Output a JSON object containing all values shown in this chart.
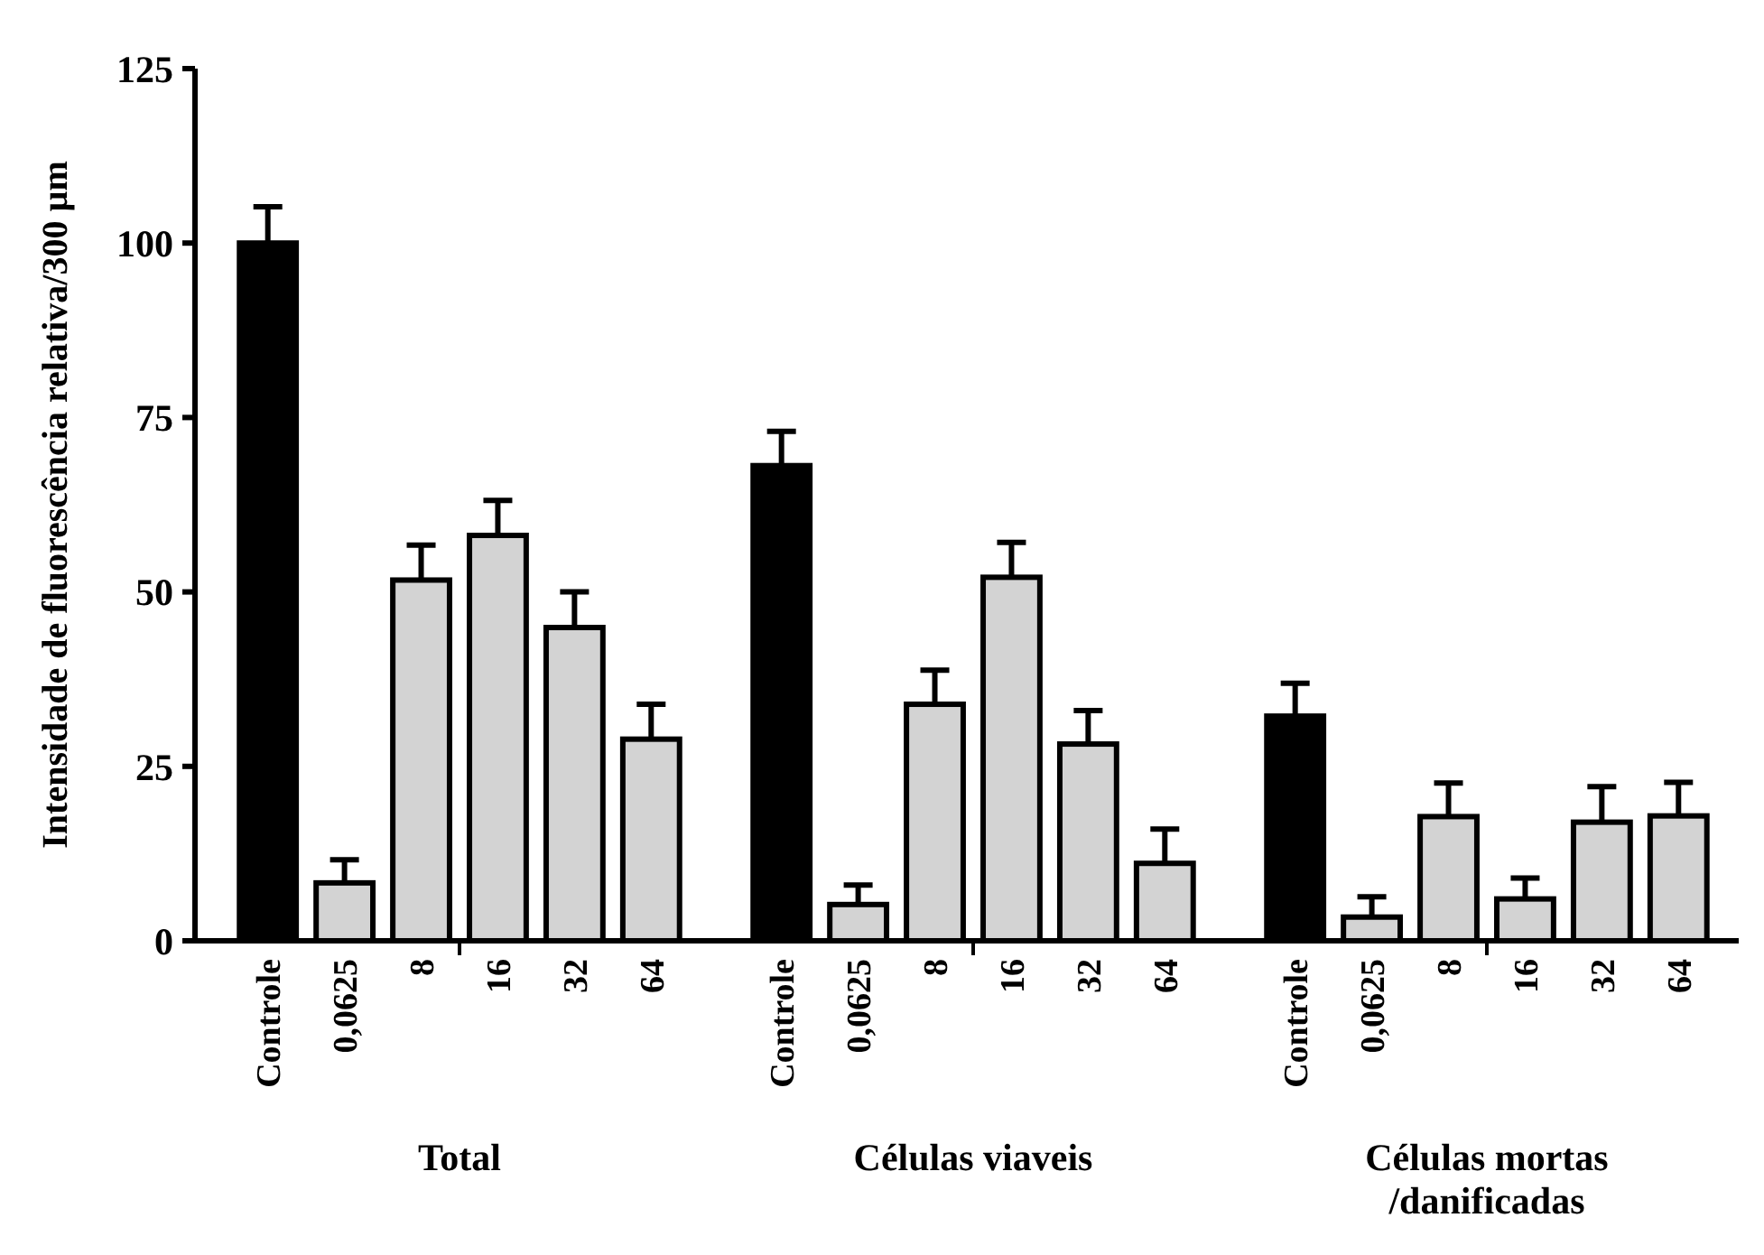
{
  "chart_data": {
    "type": "bar",
    "ylabel": "Intensidade de fluorescência relativa/300 µm",
    "categories": [
      "Controle",
      "0,0625",
      "8",
      "16",
      "32",
      "64",
      "Controle",
      "0,0625",
      "8",
      "16",
      "32",
      "64",
      "Controle",
      "0,0625",
      "8",
      "16",
      "32",
      "64"
    ],
    "values": [
      100,
      8.3,
      51.7,
      58.1,
      44.9,
      28.9,
      68.1,
      5.2,
      33.9,
      52.1,
      28.2,
      11.1,
      32.2,
      3.4,
      17.8,
      6.0,
      17.0,
      17.9
    ],
    "errors": [
      5.2,
      3.3,
      5,
      5,
      5.1,
      5,
      4.9,
      2.8,
      4.9,
      5,
      4.8,
      4.9,
      4.7,
      2.9,
      4.8,
      3,
      5.1,
      4.8
    ],
    "colors": [
      "#000000",
      "#d3d3d3",
      "#d3d3d3",
      "#d3d3d3",
      "#d3d3d3",
      "#d3d3d3",
      "#000000",
      "#d3d3d3",
      "#d3d3d3",
      "#d3d3d3",
      "#d3d3d3",
      "#d3d3d3",
      "#000000",
      "#d3d3d3",
      "#d3d3d3",
      "#d3d3d3",
      "#d3d3d3",
      "#d3d3d3"
    ],
    "annotations": [
      "Total",
      "Células viaveis",
      "Células mortas\n/danificadas"
    ],
    "ylim": [
      0,
      125
    ],
    "yticks": [
      0,
      25,
      50,
      75,
      100,
      125
    ],
    "grid": false
  }
}
